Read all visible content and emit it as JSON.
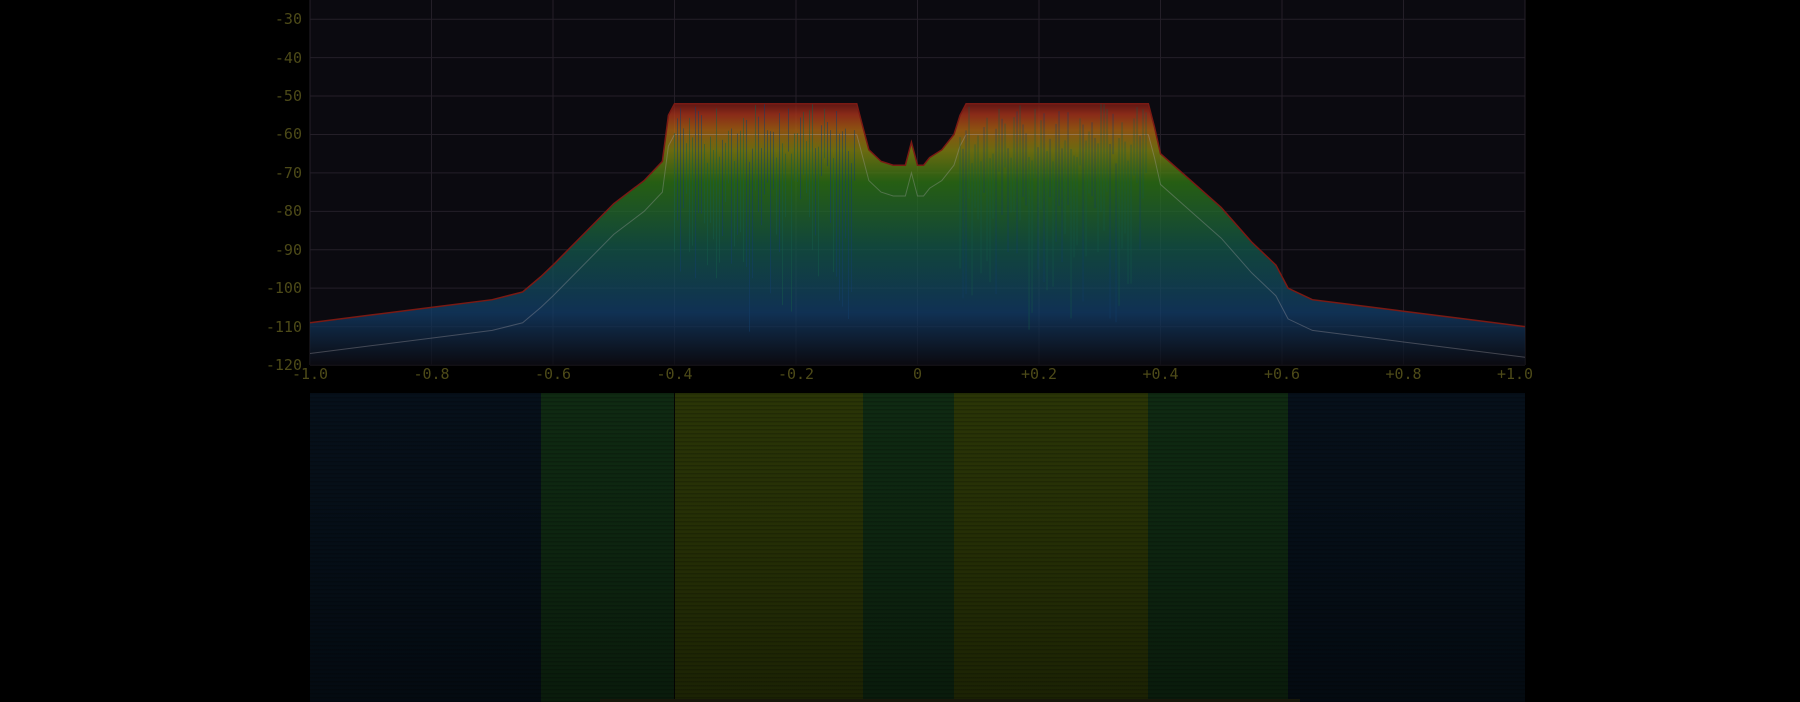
{
  "app": {
    "view": "Spectrum analyzer with waterfall"
  },
  "colors": {
    "background": "#000000",
    "plot_background": "#0b0a10",
    "grid": "#241f28",
    "tick_text": "#4d4a18",
    "trace_outer": "#7a1a14",
    "trace_red": "#b3351b",
    "trace_orange": "#b86a12",
    "trace_yellow": "#8a8a10",
    "trace_green": "#2f7a14",
    "trace_teal": "#13594a",
    "trace_blue": "#123e6a",
    "mean_line": "#a9a2a8",
    "waterfall_strong": "#2a3506",
    "waterfall_mid": "#0f2a12",
    "waterfall_weak": "#06101a"
  },
  "chart_data": {
    "type": "area",
    "y_ticks": [
      "-30",
      "-40",
      "-50",
      "-60",
      "-70",
      "-80",
      "-90",
      "-100",
      "-110",
      "-120"
    ],
    "x_ticks": [
      "-1.0",
      "-0.8",
      "-0.6",
      "-0.4",
      "-0.2",
      "0",
      "+0.2",
      "+0.4",
      "+0.6",
      "+0.8",
      "+1.0"
    ],
    "xlim": [
      -1.0,
      1.0
    ],
    "ylim": [
      -120,
      -25
    ],
    "grid": true,
    "series": [
      {
        "values_x": [
          -1.0,
          -0.9,
          -0.8,
          -0.7,
          -0.65,
          -0.62,
          -0.6,
          -0.55,
          -0.5,
          -0.45,
          -0.42,
          -0.41,
          -0.4,
          -0.3,
          -0.2,
          -0.1,
          -0.09,
          -0.08,
          -0.06,
          -0.04,
          -0.02,
          -0.01,
          0.0,
          0.01,
          0.02,
          0.04,
          0.06,
          0.07,
          0.08,
          0.1,
          0.2,
          0.3,
          0.38,
          0.39,
          0.4,
          0.45,
          0.5,
          0.55,
          0.59,
          0.6,
          0.61,
          0.65,
          0.7,
          0.8,
          0.9,
          1.0
        ],
        "values_y": [
          -109,
          -107,
          -105,
          -103,
          -101,
          -97,
          -94,
          -86,
          -78,
          -72,
          -67,
          -55,
          -52,
          -52,
          -52,
          -52,
          -58,
          -64,
          -67,
          -68,
          -68,
          -62,
          -68,
          -68,
          -66,
          -64,
          -60,
          -55,
          -52,
          -52,
          -52,
          -52,
          -52,
          -58,
          -65,
          -72,
          -79,
          -88,
          -94,
          -97,
          -100,
          -103,
          -104,
          -106,
          -108,
          -110
        ]
      }
    ]
  },
  "waterfall": {
    "bands": [
      {
        "from": -1.0,
        "to": -0.62,
        "level": 0.05
      },
      {
        "from": -0.62,
        "to": -0.4,
        "level": 0.35
      },
      {
        "from": -0.4,
        "to": -0.09,
        "level": 1.0
      },
      {
        "from": -0.09,
        "to": 0.06,
        "level": 0.55
      },
      {
        "from": 0.06,
        "to": 0.38,
        "level": 1.0
      },
      {
        "from": 0.38,
        "to": 0.61,
        "level": 0.35
      },
      {
        "from": 0.61,
        "to": 1.0,
        "level": 0.05
      }
    ]
  }
}
